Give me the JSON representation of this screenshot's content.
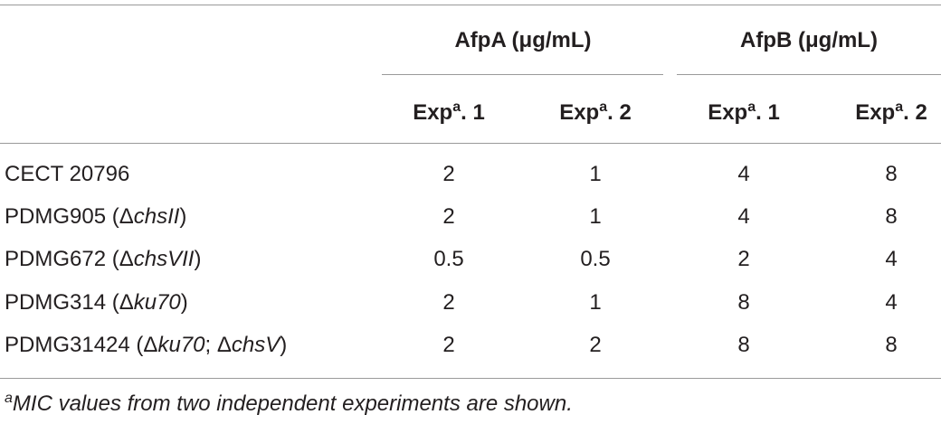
{
  "table": {
    "groups": [
      "AfpA (μg/mL)",
      "AfpB (μg/mL)"
    ],
    "columns": [
      [
        "Exp",
        "a",
        ". 1"
      ],
      [
        "Exp",
        "a",
        ". 2"
      ],
      [
        "Exp",
        "a",
        ". 1"
      ],
      [
        "Exp",
        "a",
        ". 2"
      ]
    ],
    "rows": [
      {
        "label": [
          {
            "text": "CECT 20796",
            "italic": false
          }
        ],
        "values": [
          2,
          1,
          4,
          8
        ]
      },
      {
        "label": [
          {
            "text": "PDMG905 (Δ",
            "italic": false
          },
          {
            "text": "chsII",
            "italic": true
          },
          {
            "text": ")",
            "italic": false
          }
        ],
        "values": [
          2,
          1,
          4,
          8
        ]
      },
      {
        "label": [
          {
            "text": "PDMG672 (Δ",
            "italic": false
          },
          {
            "text": "chsVII",
            "italic": true
          },
          {
            "text": ")",
            "italic": false
          }
        ],
        "values": [
          0.5,
          0.5,
          2,
          4
        ]
      },
      {
        "label": [
          {
            "text": "PDMG314 (Δ",
            "italic": false
          },
          {
            "text": "ku70",
            "italic": true
          },
          {
            "text": ")",
            "italic": false
          }
        ],
        "values": [
          2,
          1,
          8,
          4
        ]
      },
      {
        "label": [
          {
            "text": "PDMG31424 (Δ",
            "italic": false
          },
          {
            "text": "ku70",
            "italic": true
          },
          {
            "text": "; Δ",
            "italic": false
          },
          {
            "text": "chsV",
            "italic": true
          },
          {
            "text": ")",
            "italic": false
          }
        ],
        "values": [
          2,
          2,
          8,
          8
        ]
      }
    ],
    "footnote": {
      "marker": "a",
      "text": "MIC values from two independent experiments are shown."
    }
  }
}
